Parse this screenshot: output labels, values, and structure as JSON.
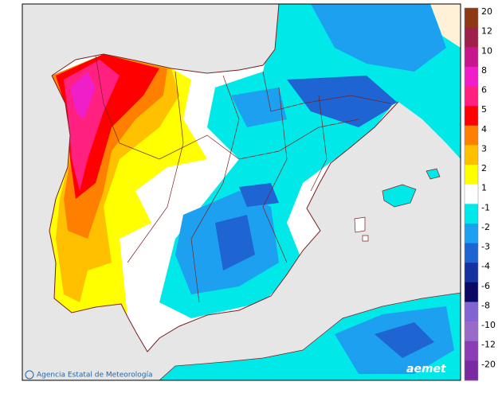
{
  "legend": {
    "items": [
      {
        "label": "20",
        "color": "#8c3a14"
      },
      {
        "label": "12",
        "color": "#a0204c"
      },
      {
        "label": "10",
        "color": "#c8168c"
      },
      {
        "label": "8",
        "color": "#f01ec8"
      },
      {
        "label": "6",
        "color": "#ff2080"
      },
      {
        "label": "5",
        "color": "#ff0000"
      },
      {
        "label": "4",
        "color": "#ff8000"
      },
      {
        "label": "3",
        "color": "#ffc000"
      },
      {
        "label": "2",
        "color": "#ffff00"
      },
      {
        "label": "1",
        "color": "#ffffff"
      },
      {
        "label": "-1",
        "color": "#00e8e8"
      },
      {
        "label": "-2",
        "color": "#1ea0f0"
      },
      {
        "label": "-3",
        "color": "#1e64d2"
      },
      {
        "label": "-4",
        "color": "#1432a0"
      },
      {
        "label": "-6",
        "color": "#0a0a64"
      },
      {
        "label": "-8",
        "color": "#8264d2"
      },
      {
        "label": "-10",
        "color": "#9a6ac8"
      },
      {
        "label": "-12",
        "color": "#8c3cb4"
      },
      {
        "label": "-20",
        "color": "#7a2aa0"
      }
    ]
  },
  "footer": {
    "agency": "Agencia Estatal de Meteorología",
    "logo": "aemet"
  }
}
